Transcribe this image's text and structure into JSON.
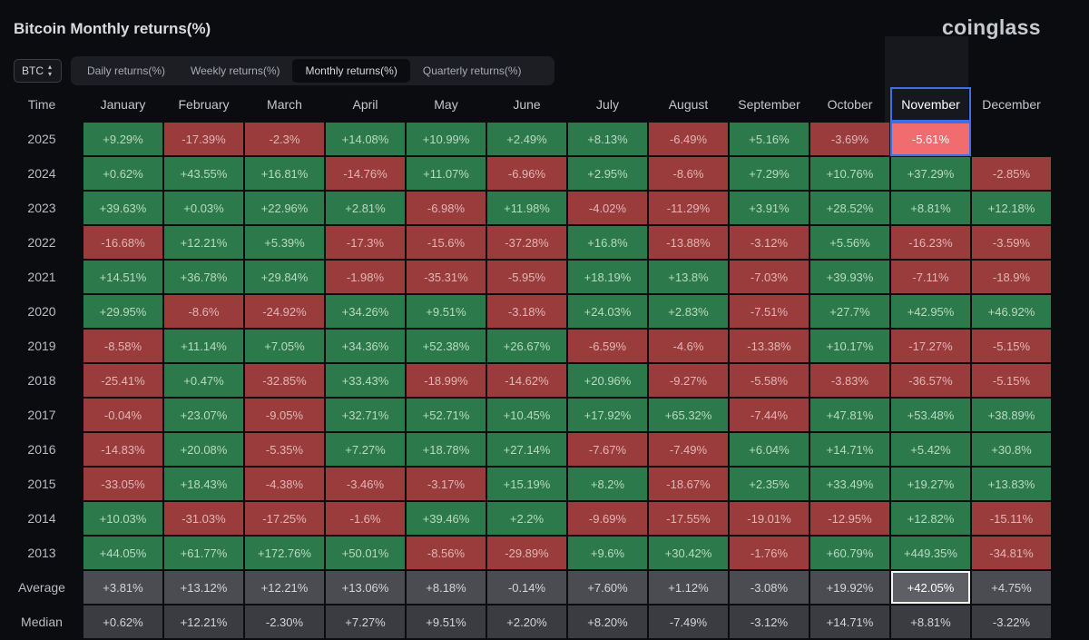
{
  "page": {
    "title": "Bitcoin Monthly returns(%)",
    "brand": "coinglass"
  },
  "symbol_select": {
    "value": "BTC"
  },
  "tabs": [
    {
      "label": "Daily returns(%)",
      "active": false
    },
    {
      "label": "Weekly returns(%)",
      "active": false
    },
    {
      "label": "Monthly returns(%)",
      "active": true
    },
    {
      "label": "Quarterly returns(%)",
      "active": false
    }
  ],
  "table": {
    "time_header": "Time",
    "months": [
      "January",
      "February",
      "March",
      "April",
      "May",
      "June",
      "July",
      "August",
      "September",
      "October",
      "November",
      "December"
    ],
    "highlight_month_index": 10,
    "rows": [
      {
        "year": "2025",
        "values": [
          "+9.29%",
          "-17.39%",
          "-2.3%",
          "+14.08%",
          "+10.99%",
          "+2.49%",
          "+8.13%",
          "-6.49%",
          "+5.16%",
          "-3.69%",
          "-5.61%",
          ""
        ]
      },
      {
        "year": "2024",
        "values": [
          "+0.62%",
          "+43.55%",
          "+16.81%",
          "-14.76%",
          "+11.07%",
          "-6.96%",
          "+2.95%",
          "-8.6%",
          "+7.29%",
          "+10.76%",
          "+37.29%",
          "-2.85%"
        ]
      },
      {
        "year": "2023",
        "values": [
          "+39.63%",
          "+0.03%",
          "+22.96%",
          "+2.81%",
          "-6.98%",
          "+11.98%",
          "-4.02%",
          "-11.29%",
          "+3.91%",
          "+28.52%",
          "+8.81%",
          "+12.18%"
        ]
      },
      {
        "year": "2022",
        "values": [
          "-16.68%",
          "+12.21%",
          "+5.39%",
          "-17.3%",
          "-15.6%",
          "-37.28%",
          "+16.8%",
          "-13.88%",
          "-3.12%",
          "+5.56%",
          "-16.23%",
          "-3.59%"
        ]
      },
      {
        "year": "2021",
        "values": [
          "+14.51%",
          "+36.78%",
          "+29.84%",
          "-1.98%",
          "-35.31%",
          "-5.95%",
          "+18.19%",
          "+13.8%",
          "-7.03%",
          "+39.93%",
          "-7.11%",
          "-18.9%"
        ]
      },
      {
        "year": "2020",
        "values": [
          "+29.95%",
          "-8.6%",
          "-24.92%",
          "+34.26%",
          "+9.51%",
          "-3.18%",
          "+24.03%",
          "+2.83%",
          "-7.51%",
          "+27.7%",
          "+42.95%",
          "+46.92%"
        ]
      },
      {
        "year": "2019",
        "values": [
          "-8.58%",
          "+11.14%",
          "+7.05%",
          "+34.36%",
          "+52.38%",
          "+26.67%",
          "-6.59%",
          "-4.6%",
          "-13.38%",
          "+10.17%",
          "-17.27%",
          "-5.15%"
        ]
      },
      {
        "year": "2018",
        "values": [
          "-25.41%",
          "+0.47%",
          "-32.85%",
          "+33.43%",
          "-18.99%",
          "-14.62%",
          "+20.96%",
          "-9.27%",
          "-5.58%",
          "-3.83%",
          "-36.57%",
          "-5.15%"
        ]
      },
      {
        "year": "2017",
        "values": [
          "-0.04%",
          "+23.07%",
          "-9.05%",
          "+32.71%",
          "+52.71%",
          "+10.45%",
          "+17.92%",
          "+65.32%",
          "-7.44%",
          "+47.81%",
          "+53.48%",
          "+38.89%"
        ]
      },
      {
        "year": "2016",
        "values": [
          "-14.83%",
          "+20.08%",
          "-5.35%",
          "+7.27%",
          "+18.78%",
          "+27.14%",
          "-7.67%",
          "-7.49%",
          "+6.04%",
          "+14.71%",
          "+5.42%",
          "+30.8%"
        ]
      },
      {
        "year": "2015",
        "values": [
          "-33.05%",
          "+18.43%",
          "-4.38%",
          "-3.46%",
          "-3.17%",
          "+15.19%",
          "+8.2%",
          "-18.67%",
          "+2.35%",
          "+33.49%",
          "+19.27%",
          "+13.83%"
        ]
      },
      {
        "year": "2014",
        "values": [
          "+10.03%",
          "-31.03%",
          "-17.25%",
          "-1.6%",
          "+39.46%",
          "+2.2%",
          "-9.69%",
          "-17.55%",
          "-19.01%",
          "-12.95%",
          "+12.82%",
          "-15.11%"
        ]
      },
      {
        "year": "2013",
        "values": [
          "+44.05%",
          "+61.77%",
          "+172.76%",
          "+50.01%",
          "-8.56%",
          "-29.89%",
          "+9.6%",
          "+30.42%",
          "-1.76%",
          "+60.79%",
          "+449.35%",
          "-34.81%"
        ]
      }
    ],
    "average": {
      "label": "Average",
      "values": [
        "+3.81%",
        "+13.12%",
        "+12.21%",
        "+13.06%",
        "+8.18%",
        "-0.14%",
        "+7.60%",
        "+1.12%",
        "-3.08%",
        "+19.92%",
        "+42.05%",
        "+4.75%"
      ]
    },
    "median": {
      "label": "Median",
      "values": [
        "+0.62%",
        "+12.21%",
        "-2.30%",
        "+7.27%",
        "+9.51%",
        "+2.20%",
        "+8.20%",
        "-7.49%",
        "-3.12%",
        "+14.71%",
        "+8.81%",
        "-3.22%"
      ]
    }
  },
  "colors": {
    "positive": "#2c7a4b",
    "negative": "#9a3b3c",
    "current": "#f06c6e",
    "highlight_border": "#3f6ee8"
  }
}
